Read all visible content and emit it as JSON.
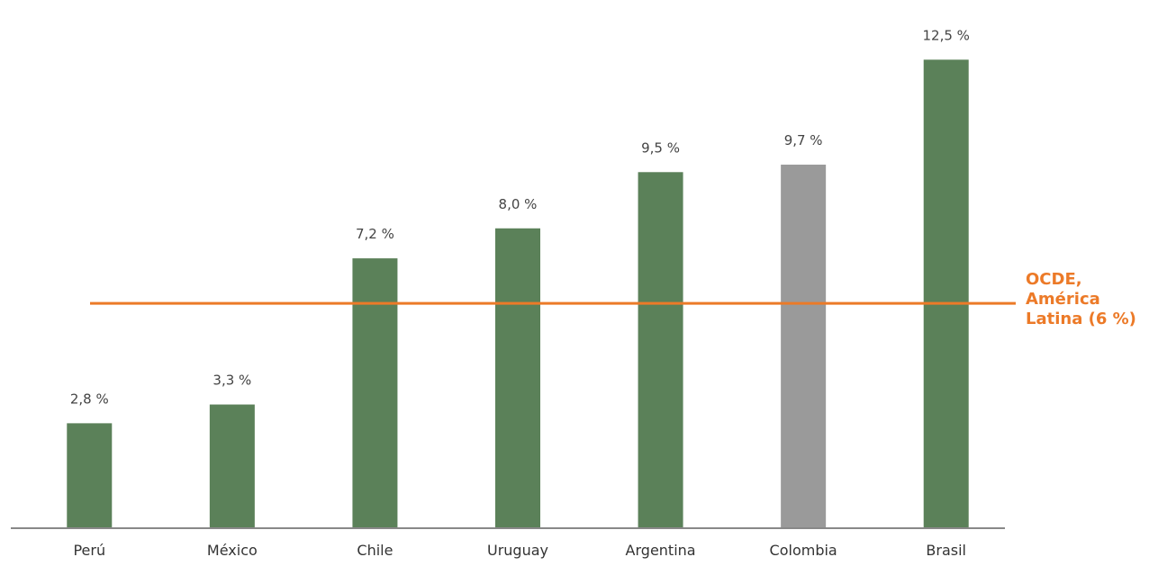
{
  "chart_data": {
    "type": "bar",
    "categories": [
      "Perú",
      "México",
      "Chile",
      "Uruguay",
      "Argentina",
      "Colombia",
      "Brasil"
    ],
    "values": [
      2.8,
      3.3,
      7.2,
      8.0,
      9.5,
      9.7,
      12.5
    ],
    "value_labels": [
      "2,8 %",
      "3,3 %",
      "7,2 %",
      "8,0 %",
      "9,5 %",
      "9,7 %",
      "12,5 %"
    ],
    "highlight_category": "Colombia",
    "ylim": [
      0,
      13.3
    ],
    "grid": false,
    "reference_line": {
      "value": 6,
      "label_lines": [
        "OCDE,",
        "América",
        "Latina (6 %)"
      ]
    },
    "colors": {
      "bar": "#5b8159",
      "highlight": "#9a9a9a",
      "reference": "#ec7a28",
      "axis": "#888888"
    }
  }
}
